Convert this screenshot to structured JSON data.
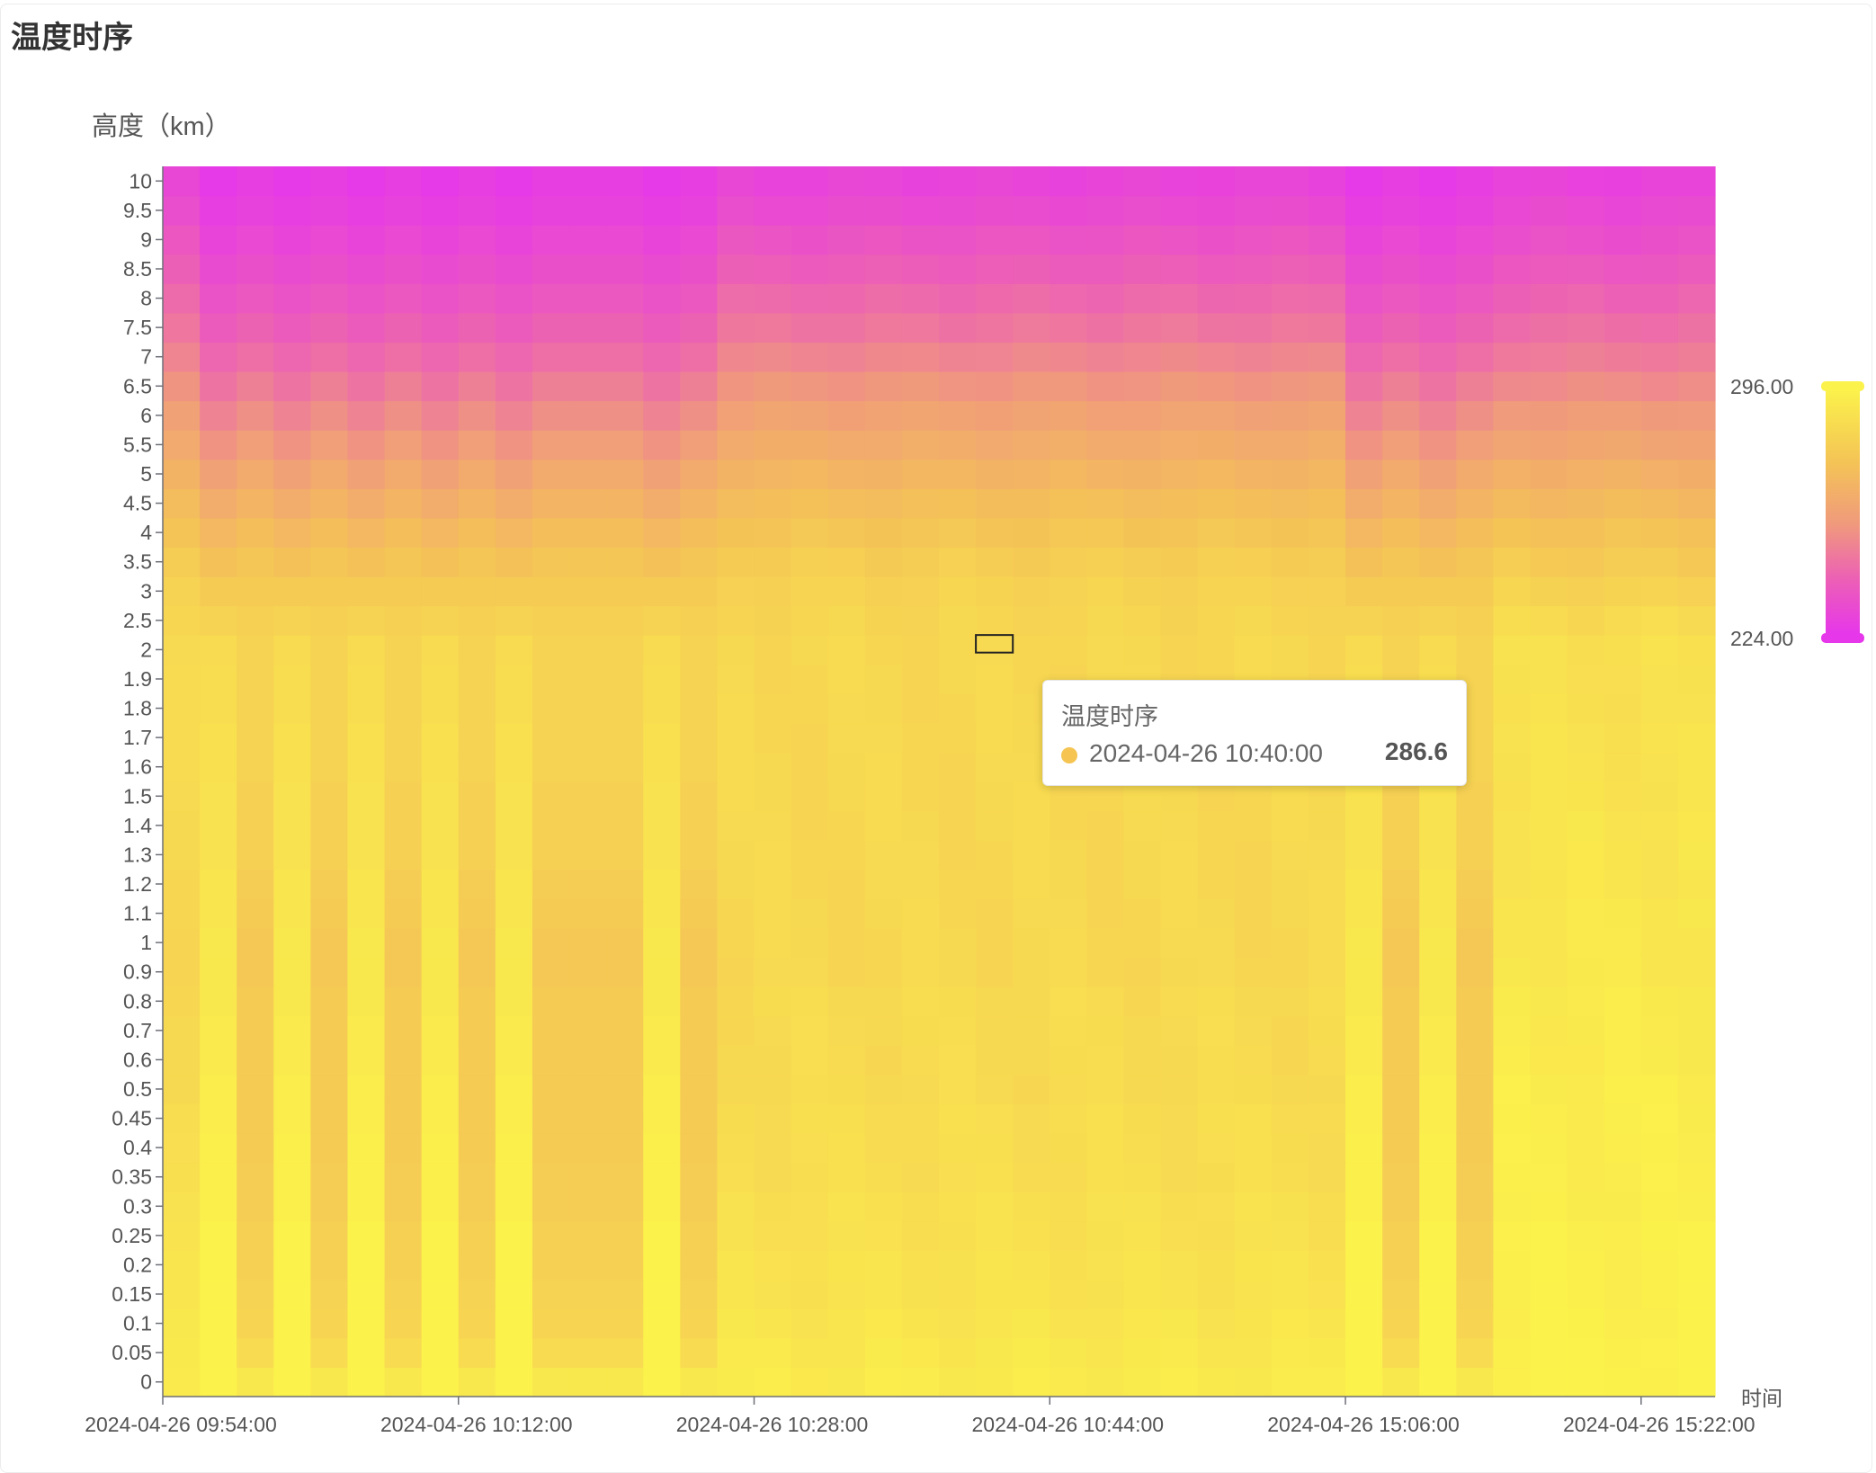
{
  "page": {
    "title": "温度时序"
  },
  "chart_data": {
    "type": "heatmap",
    "title": "温度时序",
    "ylabel": "高度（km）",
    "xlabel": "时间",
    "y_categories": [
      "0",
      "0.05",
      "0.1",
      "0.15",
      "0.2",
      "0.25",
      "0.3",
      "0.35",
      "0.4",
      "0.45",
      "0.5",
      "0.6",
      "0.7",
      "0.8",
      "0.9",
      "1",
      "1.1",
      "1.2",
      "1.3",
      "1.4",
      "1.5",
      "1.6",
      "1.7",
      "1.8",
      "1.9",
      "2",
      "2.5",
      "3",
      "3.5",
      "4",
      "4.5",
      "5",
      "5.5",
      "6",
      "6.5",
      "7",
      "7.5",
      "8",
      "8.5",
      "9",
      "9.5",
      "10"
    ],
    "x_tick_labels": [
      "2024-04-26 09:54:00",
      "2024-04-26 10:12:00",
      "2024-04-26 10:28:00",
      "2024-04-26 10:44:00",
      "2024-04-26 15:06:00",
      "2024-04-26 15:22:00"
    ],
    "x_column_count": 42,
    "x_columns_between_ticks": 8,
    "visual_map": {
      "min": 224,
      "max": 296,
      "min_label": "224.00",
      "max_label": "296.00",
      "colors": [
        "#e637ea",
        "#ec5fb6",
        "#f09a7c",
        "#f4c356",
        "#fbf24b"
      ]
    },
    "value_model": {
      "note_surface_base": 289,
      "warm_columns": [
        1,
        3,
        5,
        7,
        9,
        13,
        32,
        34
      ],
      "cool_columns": [
        2,
        4,
        6,
        8,
        10,
        11,
        12,
        14,
        33,
        35
      ]
    },
    "profiles": {
      "warm": [
        296,
        296,
        296,
        296,
        296,
        296,
        295,
        295,
        295,
        294,
        294,
        293,
        293,
        292,
        292,
        292,
        291,
        291,
        290,
        290,
        290,
        289,
        289,
        288,
        288,
        287,
        284,
        281,
        277,
        273,
        268,
        263,
        258,
        253,
        248,
        244,
        240,
        236,
        233,
        230,
        227,
        225
      ],
      "cool": [
        292,
        287,
        285,
        284,
        283,
        283,
        282,
        282,
        281,
        281,
        281,
        281,
        281,
        281,
        280,
        280,
        281,
        282,
        283,
        283,
        283,
        284,
        284,
        284,
        284,
        284,
        283,
        281,
        279,
        276,
        272,
        267,
        262,
        257,
        252,
        247,
        243,
        239,
        235,
        232,
        229,
        227
      ],
      "mid": [
        293,
        292,
        291,
        290,
        290,
        289,
        289,
        288,
        288,
        288,
        287,
        287,
        287,
        287,
        286,
        286,
        286,
        286,
        286,
        286,
        286,
        286,
        286,
        286,
        286,
        286,
        285,
        284,
        282,
        279,
        276,
        272,
        268,
        264,
        259,
        254,
        249,
        245,
        241,
        237,
        233,
        230
      ],
      "late": [
        296,
        296,
        295,
        295,
        295,
        295,
        294,
        294,
        294,
        294,
        294,
        293,
        293,
        293,
        292,
        292,
        292,
        291,
        291,
        291,
        290,
        290,
        290,
        289,
        289,
        289,
        287,
        284,
        281,
        278,
        274,
        270,
        265,
        261,
        256,
        251,
        247,
        243,
        239,
        235,
        232,
        229
      ]
    },
    "highlight": {
      "column": 22,
      "y": "2"
    },
    "tooltip": {
      "series": "温度时序",
      "name": "2024-04-26 10:40:00",
      "value": "286.6",
      "color": "#f5c451"
    }
  }
}
